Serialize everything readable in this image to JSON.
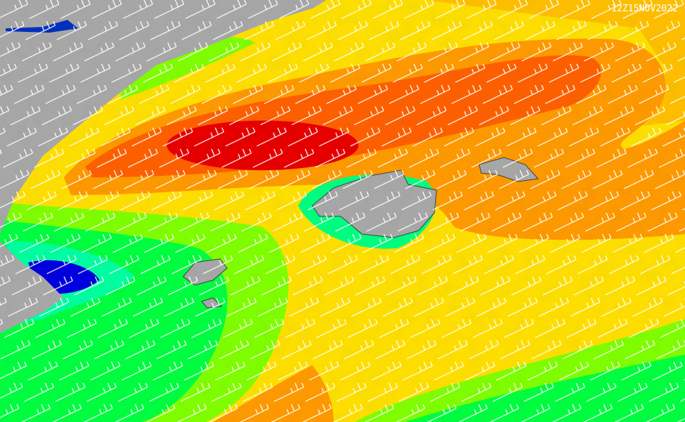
{
  "timestamp": "12Z15NOV2022"
}
